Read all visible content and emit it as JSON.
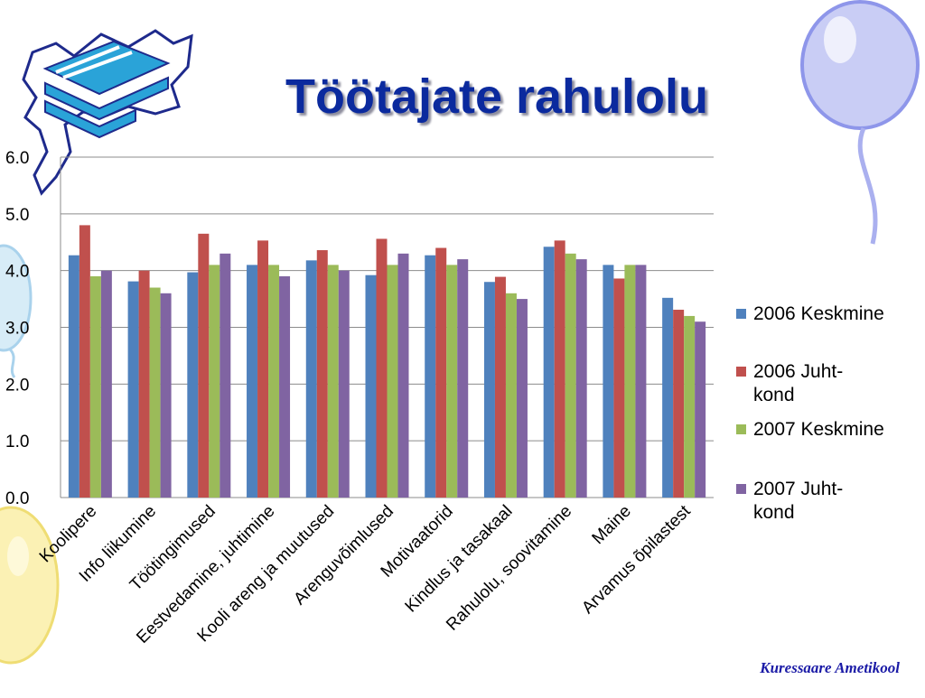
{
  "slide": {
    "title": "Töötajate rahulolu",
    "footer": "Kuressaare Ametikool"
  },
  "colors": {
    "title": "#0b2a9e",
    "series": [
      "#4f81bd",
      "#c0504d",
      "#9bbb59",
      "#8064a2"
    ]
  },
  "icons": {
    "logo": "school-building-map-logo",
    "decor_right": "balloon-decoration",
    "decor_left": "balloon-decoration",
    "decor_bottom": "balloon-decoration"
  },
  "chart_data": {
    "type": "bar",
    "categories": [
      "Koolipere",
      "Info liikumine",
      "Töötingimused",
      "Eestvedamine, juhtimine",
      "Kooli areng ja muutused",
      "Arenguvõimlused",
      "Motivaatorid",
      "Kindlus ja tasakaal",
      "Rahulolu, soovitamine",
      "Maine",
      "Arvamus õpilastest"
    ],
    "series": [
      {
        "name": "2006 Keskmine",
        "values": [
          4.27,
          3.81,
          3.97,
          4.1,
          4.18,
          3.92,
          4.27,
          3.8,
          4.42,
          4.1,
          3.52
        ]
      },
      {
        "name": "2006 Juht-kond",
        "values": [
          4.8,
          4.0,
          4.65,
          4.53,
          4.36,
          4.56,
          4.4,
          3.89,
          4.53,
          3.86,
          3.31
        ]
      },
      {
        "name": "2007 Keskmine",
        "values": [
          3.9,
          3.7,
          4.1,
          4.1,
          4.1,
          4.1,
          4.1,
          3.6,
          4.3,
          4.1,
          3.2
        ]
      },
      {
        "name": "2007 Juht-kond",
        "values": [
          4.0,
          3.6,
          4.3,
          3.9,
          4.0,
          4.3,
          4.2,
          3.5,
          4.2,
          4.1,
          3.1
        ]
      }
    ],
    "legend_labels": [
      [
        "2006 Keskmine"
      ],
      [
        "2006 Juht-",
        "kond"
      ],
      [
        "2007 Keskmine"
      ],
      [
        "2007 Juht-",
        "kond"
      ]
    ],
    "y_ticks": [
      "0.0",
      "1.0",
      "2.0",
      "3.0",
      "4.0",
      "5.0",
      "6.0"
    ],
    "ylim": [
      0,
      6
    ],
    "grid": true,
    "legend_position": "right"
  }
}
